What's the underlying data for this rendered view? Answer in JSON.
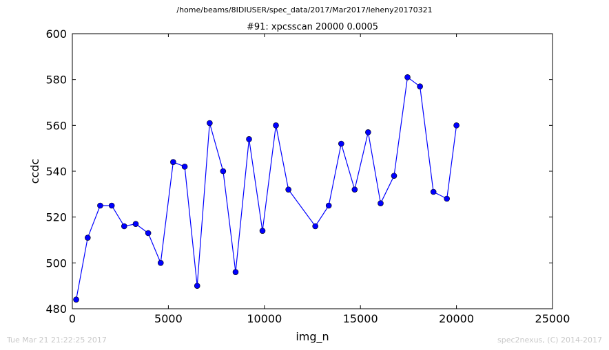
{
  "suptitle": "/home/beams/8IDIUSER/spec_data/2017/Mar2017/leheny20170321",
  "footer": {
    "timestamp": "Tue Mar 21 21:22:25 2017",
    "credit": "spec2nexus, (C) 2014-2017"
  },
  "chart_data": {
    "type": "line",
    "title": "#91: xpcsscan 20000 0.0005",
    "xlabel": "img_n",
    "ylabel": "ccdc",
    "xlim": [
      0,
      25000
    ],
    "ylim": [
      480,
      600
    ],
    "xticks": [
      0,
      5000,
      10000,
      15000,
      20000,
      25000
    ],
    "yticks": [
      480,
      500,
      520,
      540,
      560,
      580,
      600
    ],
    "grid": false,
    "marker": "circle",
    "line_color": "#0000ff",
    "marker_color": "#0000ff",
    "series": [
      {
        "x": [
          200,
          800,
          1450,
          2050,
          2700,
          3300,
          3950,
          4600,
          5250,
          5850,
          6500,
          7150,
          7850,
          8500,
          9200,
          9900,
          10600,
          11250,
          12650,
          13350,
          14000,
          14700,
          15400,
          16050,
          16750,
          17450,
          18100,
          18800,
          19500,
          20000
        ],
        "y": [
          484,
          511,
          525,
          525,
          516,
          517,
          513,
          500,
          544,
          542,
          490,
          561,
          540,
          496,
          554,
          514,
          560,
          532,
          516,
          525,
          552,
          532,
          557,
          526,
          538,
          581,
          577,
          531,
          528,
          560
        ]
      }
    ]
  }
}
